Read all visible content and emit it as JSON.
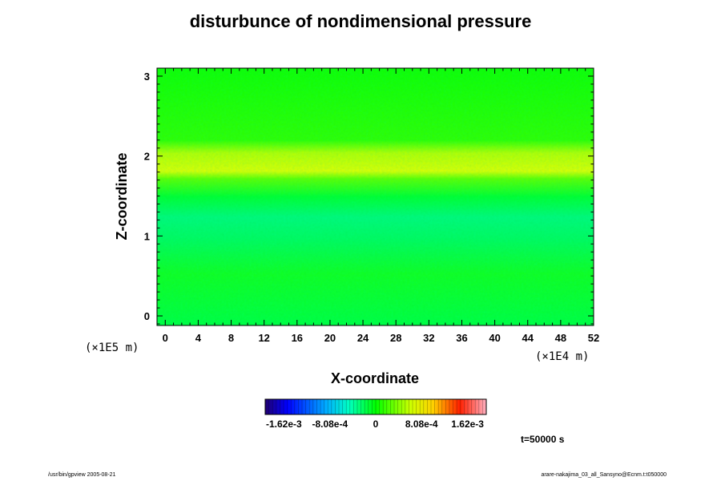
{
  "chart_data": {
    "type": "heatmap",
    "title": "disturbunce of nondimensional pressure",
    "xlabel": "X-coordinate",
    "ylabel": "Z-coordinate",
    "x_scale": "(×1E4 m)",
    "y_scale": "(×1E5 m)",
    "x_ticks": [
      "0",
      "4",
      "8",
      "12",
      "16",
      "20",
      "24",
      "28",
      "32",
      "36",
      "40",
      "44",
      "48",
      "52"
    ],
    "y_ticks": [
      "0",
      "1",
      "2",
      "3"
    ],
    "xlim": [
      -1,
      52
    ],
    "ylim": [
      -0.12,
      3.1
    ],
    "colorbar": {
      "range": [
        -0.00195,
        0.00195
      ],
      "tick_labels": [
        "-1.62e-3",
        "-8.08e-4",
        "0",
        "8.08e-4",
        "1.62e-3"
      ],
      "tick_values": [
        -0.00162,
        -0.000808,
        0,
        0.000808,
        0.00162
      ]
    },
    "features": [
      {
        "description": "positive band",
        "z_range": [
          1.7,
          2.05
        ],
        "value": 0.0008
      },
      {
        "description": "weak negative band",
        "z_range": [
          1.0,
          1.35
        ],
        "value": -0.0003
      }
    ]
  },
  "time_label": "t=50000 s",
  "footer": {
    "left": "/usr/bin/gpview 2005-08-21",
    "right": "arare-nakajima_03_all_Sansyno@Ecnm.t:t050000"
  },
  "colors": {
    "background_field": "#00ff00",
    "positive_band": "#c8ff00",
    "negative_band": "#00f27a"
  }
}
